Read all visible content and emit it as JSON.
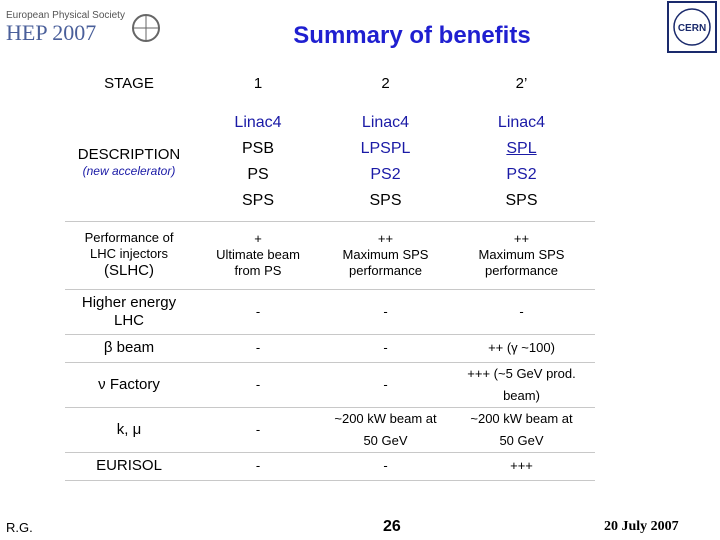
{
  "header": {
    "society": "European Physical Society",
    "conference": "HEP 2007",
    "title": "Summary of benefits",
    "cern_logo": "CERN"
  },
  "table": {
    "columns": [
      "STAGE",
      "1",
      "2",
      "2’"
    ],
    "description": {
      "label": "DESCRIPTION",
      "note": "(new accelerator)",
      "chains": [
        [
          "Linac4",
          "PSB",
          "PS",
          "SPS"
        ],
        [
          "Linac4",
          "LPSPL",
          "PS2",
          "SPS"
        ],
        [
          "Linac4",
          "SPL",
          "PS2",
          "SPS"
        ]
      ]
    },
    "rows": [
      {
        "label": [
          "Performance of",
          "LHC injectors",
          "(SLHC)"
        ],
        "cells": [
          [
            "+",
            "Ultimate beam",
            "from PS"
          ],
          [
            "++",
            "Maximum SPS",
            "performance"
          ],
          [
            "++",
            "Maximum SPS",
            "performance"
          ]
        ]
      },
      {
        "label": [
          "Higher energy",
          "LHC"
        ],
        "cells": [
          [
            "-"
          ],
          [
            "-"
          ],
          [
            "-"
          ]
        ]
      },
      {
        "label": [
          "β beam"
        ],
        "cells": [
          [
            "-"
          ],
          [
            "-"
          ],
          [
            "++ (γ ~100)"
          ]
        ]
      },
      {
        "label": [
          "ν Factory"
        ],
        "cells": [
          [
            "-"
          ],
          [
            "-"
          ],
          [
            "+++ (~5 GeV prod.",
            "beam)"
          ]
        ]
      },
      {
        "label": [
          "k, μ"
        ],
        "cells": [
          [
            "-"
          ],
          [
            "~200 kW beam at",
            "50 GeV"
          ],
          [
            "~200 kW beam at",
            "50 GeV"
          ]
        ]
      },
      {
        "label": [
          "EURISOL"
        ],
        "cells": [
          [
            "-"
          ],
          [
            "-"
          ],
          [
            "+++"
          ]
        ]
      }
    ]
  },
  "footer": {
    "author": "R.G.",
    "page": "26",
    "date": "20 July 2007"
  }
}
